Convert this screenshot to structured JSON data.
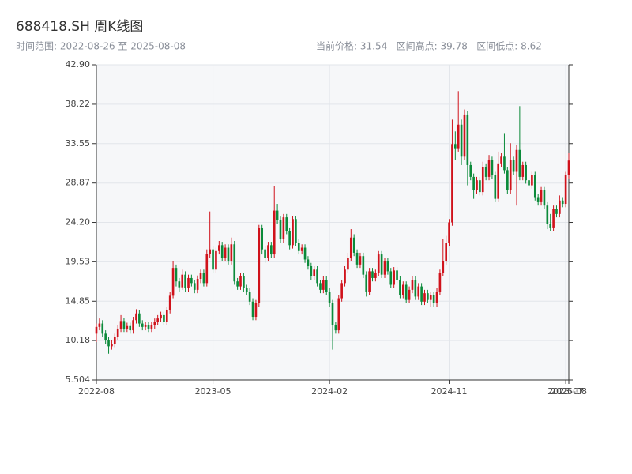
{
  "chart_data": {
    "type": "candlestick",
    "title": "688418.SH 周K线图",
    "subtitle": "时间范围: 2022-08-26 至 2025-08-08",
    "summary": "当前价格: 31.54   区间高点: 39.78   区间低点: 8.62",
    "up_color": "#d0121b",
    "down_color": "#0b8a3a",
    "grid": true,
    "ylim": [
      5.504,
      42.9
    ],
    "yticks": [
      5.504,
      10.18,
      14.85,
      19.53,
      {
        "value": 24.2,
        "label": "24.20"
      },
      28.87,
      33.55,
      38.22,
      {
        "value": 42.9,
        "label": "42.90"
      }
    ],
    "categories": [
      "2022-08",
      null,
      null,
      null,
      null,
      null,
      null,
      null,
      null,
      null,
      null,
      null,
      null,
      null,
      null,
      null,
      null,
      null,
      null,
      null,
      null,
      null,
      null,
      null,
      null,
      null,
      null,
      null,
      null,
      null,
      null,
      null,
      null,
      null,
      null,
      null,
      null,
      null,
      "2023-05",
      null,
      null,
      null,
      null,
      null,
      null,
      null,
      null,
      null,
      null,
      null,
      null,
      null,
      null,
      null,
      null,
      null,
      null,
      null,
      null,
      null,
      null,
      null,
      null,
      null,
      null,
      null,
      null,
      null,
      null,
      null,
      null,
      null,
      null,
      null,
      null,
      null,
      "2024-02",
      null,
      null,
      null,
      null,
      null,
      null,
      null,
      null,
      null,
      null,
      null,
      null,
      null,
      null,
      null,
      null,
      null,
      null,
      null,
      null,
      null,
      null,
      null,
      null,
      null,
      null,
      null,
      null,
      null,
      null,
      null,
      null,
      null,
      null,
      null,
      null,
      null,
      null,
      "2024-11",
      null,
      null,
      null,
      null,
      null,
      null,
      null,
      null,
      null,
      null,
      null,
      null,
      null,
      null,
      null,
      null,
      null,
      null,
      null,
      null,
      null,
      null,
      null,
      null,
      null,
      null,
      null,
      null,
      null,
      null,
      null,
      null,
      null,
      null,
      null,
      null,
      null,
      "2025-07",
      "2025-08"
    ],
    "open": [
      11.0,
      11.8,
      12.2,
      11.0,
      10.2,
      9.5,
      9.8,
      10.6,
      11.6,
      12.5,
      11.6,
      11.9,
      11.4,
      12.6,
      13.4,
      12.2,
      11.8,
      12.0,
      11.6,
      12.0,
      12.4,
      12.8,
      13.2,
      12.4,
      13.8,
      15.5,
      18.8,
      17.2,
      16.5,
      18.0,
      16.4,
      17.6,
      17.0,
      16.2,
      17.5,
      18.2,
      17.0,
      20.5,
      21.0,
      18.6,
      20.8,
      21.5,
      20.0,
      21.2,
      19.6,
      21.6,
      17.2,
      16.6,
      17.8,
      16.4,
      16.0,
      14.8,
      13.0,
      14.6,
      23.5,
      21.0,
      20.0,
      21.5,
      20.4,
      25.6,
      24.5,
      22.2,
      24.8,
      23.2,
      21.5,
      24.6,
      21.8,
      20.8,
      21.2,
      19.8,
      19.0,
      17.8,
      18.6,
      17.0,
      16.2,
      17.4,
      16.0,
      14.6,
      12.0,
      11.4,
      15.2,
      17.0,
      18.6,
      20.0,
      22.4,
      20.6,
      19.2,
      20.2,
      18.0,
      16.0,
      18.4,
      17.6,
      18.2,
      20.4,
      18.0,
      19.6,
      18.4,
      16.8,
      18.5,
      17.4,
      15.6,
      16.8,
      15.0,
      16.2,
      17.4,
      15.4,
      16.6,
      14.8,
      15.8,
      15.0,
      15.6,
      14.6,
      16.0,
      18.2,
      19.6,
      21.8,
      24.2,
      33.5,
      33.0,
      35.8,
      32.0,
      37.0,
      31.0,
      29.6,
      28.0,
      29.2,
      27.8,
      30.8,
      29.6,
      31.6,
      29.8,
      27.0,
      31.2,
      32.0,
      30.4,
      28.0,
      31.6,
      30.2,
      32.8,
      29.6,
      31.0,
      29.2,
      28.6,
      29.8,
      27.2,
      26.6,
      28.0,
      26.2,
      24.0,
      23.6,
      25.8,
      25.2,
      26.8,
      26.4,
      29.8
    ],
    "high": [
      12.2,
      12.8,
      12.6,
      11.4,
      10.6,
      10.2,
      11.0,
      12.0,
      13.2,
      12.9,
      12.3,
      12.3,
      13.0,
      13.9,
      13.8,
      12.6,
      12.4,
      12.4,
      12.4,
      12.8,
      13.2,
      13.6,
      13.6,
      14.2,
      16.0,
      19.6,
      19.2,
      17.6,
      18.6,
      18.4,
      18.0,
      18.0,
      17.4,
      17.9,
      18.6,
      18.6,
      21.0,
      25.5,
      21.4,
      21.2,
      22.0,
      21.9,
      21.6,
      21.6,
      22.4,
      22.0,
      17.6,
      18.2,
      18.2,
      16.8,
      16.4,
      15.2,
      15.0,
      23.9,
      23.9,
      21.4,
      21.9,
      21.9,
      28.5,
      26.4,
      24.9,
      25.2,
      25.2,
      23.6,
      25.0,
      25.0,
      22.2,
      21.6,
      21.6,
      20.2,
      19.4,
      19.0,
      19.0,
      17.4,
      17.8,
      17.8,
      16.4,
      15.0,
      12.4,
      15.6,
      17.4,
      19.0,
      20.6,
      23.4,
      22.8,
      21.0,
      20.6,
      20.6,
      18.4,
      18.8,
      18.8,
      18.6,
      20.8,
      20.8,
      20.0,
      20.0,
      18.8,
      18.9,
      18.9,
      17.8,
      17.2,
      17.2,
      16.6,
      17.8,
      17.8,
      17.0,
      17.0,
      16.2,
      16.2,
      16.0,
      16.0,
      16.4,
      18.6,
      22.2,
      22.6,
      24.6,
      36.4,
      35.0,
      39.78,
      36.4,
      37.6,
      37.4,
      31.4,
      30.0,
      29.6,
      29.6,
      31.4,
      31.2,
      32.2,
      32.0,
      30.2,
      32.6,
      32.4,
      34.8,
      30.8,
      33.6,
      32.0,
      33.4,
      38.0,
      31.4,
      31.4,
      29.6,
      30.2,
      30.2,
      27.6,
      28.4,
      28.4,
      26.6,
      25.2,
      26.2,
      26.2,
      27.4,
      27.2,
      30.2,
      32.4
    ],
    "low": [
      10.0,
      11.4,
      10.6,
      9.8,
      8.62,
      9.1,
      9.4,
      10.2,
      11.2,
      11.2,
      11.2,
      11.0,
      11.0,
      12.2,
      11.8,
      11.4,
      11.4,
      11.2,
      11.2,
      11.6,
      12.0,
      12.4,
      12.0,
      12.0,
      13.4,
      15.2,
      16.6,
      16.0,
      16.2,
      16.0,
      16.0,
      16.6,
      15.8,
      15.8,
      17.0,
      16.6,
      16.6,
      20.0,
      18.2,
      18.2,
      20.4,
      19.6,
      19.6,
      19.2,
      19.2,
      16.8,
      16.2,
      16.2,
      16.0,
      15.6,
      14.4,
      12.6,
      12.6,
      14.2,
      20.4,
      19.4,
      19.6,
      20.0,
      20.0,
      24.0,
      21.8,
      21.8,
      22.8,
      21.0,
      21.1,
      21.4,
      20.4,
      20.4,
      19.4,
      18.6,
      17.4,
      17.4,
      16.6,
      15.8,
      15.8,
      15.6,
      14.2,
      9.1,
      11.0,
      11.0,
      14.8,
      16.6,
      18.2,
      19.6,
      20.2,
      18.8,
      18.8,
      17.6,
      15.4,
      15.6,
      17.2,
      17.2,
      17.8,
      17.6,
      17.6,
      18.0,
      16.4,
      16.4,
      17.0,
      15.2,
      15.2,
      14.6,
      14.6,
      15.8,
      15.0,
      15.0,
      14.4,
      14.4,
      14.6,
      14.2,
      14.2,
      14.2,
      15.6,
      17.8,
      19.2,
      21.4,
      23.8,
      31.6,
      32.6,
      31.0,
      31.6,
      28.6,
      29.2,
      27.0,
      27.6,
      27.4,
      27.4,
      29.2,
      29.2,
      29.4,
      26.6,
      26.6,
      30.8,
      30.0,
      27.6,
      27.6,
      29.8,
      26.2,
      29.2,
      29.2,
      28.8,
      28.2,
      28.2,
      26.8,
      26.2,
      26.2,
      25.8,
      23.4,
      23.2,
      23.2,
      24.8,
      24.8,
      26.0,
      26.0,
      29.4
    ],
    "close": [
      11.8,
      12.2,
      11.0,
      10.2,
      9.5,
      9.8,
      10.6,
      11.6,
      12.5,
      11.6,
      11.9,
      11.4,
      12.6,
      13.4,
      12.2,
      11.8,
      12.0,
      11.6,
      12.0,
      12.4,
      12.8,
      13.2,
      12.4,
      13.8,
      15.5,
      18.8,
      17.2,
      16.5,
      18.0,
      16.4,
      17.6,
      17.0,
      16.2,
      17.5,
      18.2,
      17.0,
      20.5,
      21.0,
      18.6,
      20.8,
      21.5,
      20.0,
      21.2,
      19.6,
      21.6,
      17.2,
      16.6,
      17.8,
      16.4,
      16.0,
      14.8,
      13.0,
      14.6,
      23.5,
      21.0,
      20.0,
      21.5,
      20.4,
      25.6,
      24.5,
      22.2,
      24.8,
      23.2,
      21.5,
      24.6,
      21.8,
      20.8,
      21.2,
      19.8,
      19.0,
      17.8,
      18.6,
      17.0,
      16.2,
      17.4,
      16.0,
      14.6,
      12.0,
      11.4,
      15.2,
      17.0,
      18.6,
      20.0,
      22.4,
      20.6,
      19.2,
      20.2,
      18.0,
      16.0,
      18.4,
      17.6,
      18.2,
      20.4,
      18.0,
      19.6,
      18.4,
      16.8,
      18.5,
      17.4,
      15.6,
      16.8,
      15.0,
      16.2,
      17.4,
      15.4,
      16.6,
      14.8,
      15.8,
      15.0,
      15.6,
      14.6,
      16.0,
      18.2,
      19.6,
      21.8,
      24.2,
      33.5,
      33.0,
      35.8,
      32.0,
      37.0,
      31.0,
      29.6,
      28.0,
      29.2,
      27.8,
      30.8,
      29.6,
      31.6,
      29.8,
      27.0,
      31.2,
      32.0,
      30.4,
      28.0,
      31.6,
      30.2,
      32.8,
      29.6,
      31.0,
      29.2,
      28.6,
      29.8,
      27.2,
      26.6,
      28.0,
      26.2,
      24.0,
      23.6,
      25.8,
      25.2,
      26.8,
      26.4,
      29.8,
      31.54
    ]
  }
}
